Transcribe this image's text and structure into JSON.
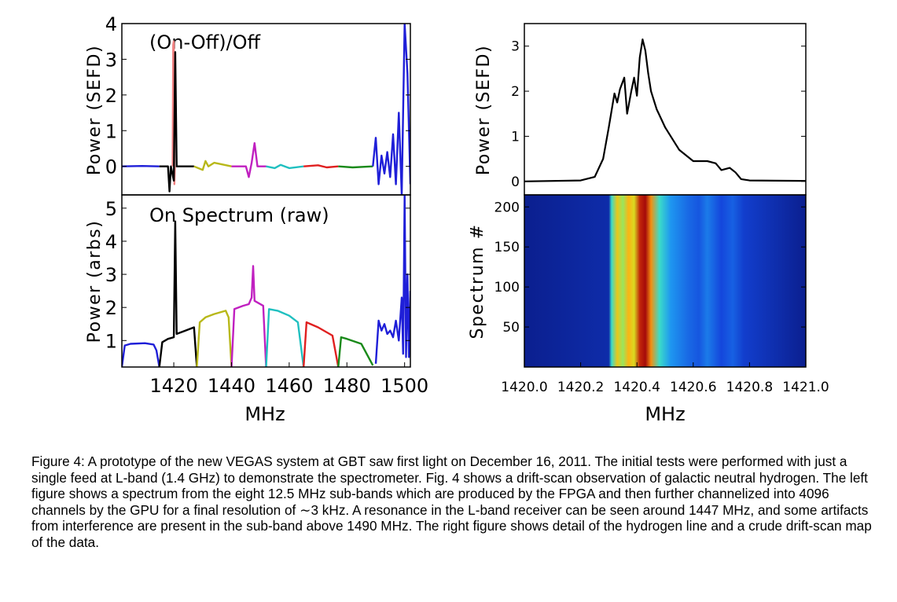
{
  "chart_data": [
    {
      "panel": "left-top",
      "type": "line",
      "title": "(On-Off)/Off",
      "xlabel": "",
      "ylabel": "Power (SEFD)",
      "xlim": [
        1402,
        1502
      ],
      "ylim": [
        -0.8,
        4
      ],
      "yticks": [
        "0",
        "1",
        "2",
        "3",
        "4"
      ],
      "series": [
        {
          "name": "sub-band 1",
          "color": "#1f1fd8",
          "x": [
            1402,
            1409,
            1415
          ],
          "y": [
            0,
            0.01,
            0
          ]
        },
        {
          "name": "sub-band 2 (red spike)",
          "color": "#f08080",
          "x": [
            1419.6,
            1419.8,
            1420.0,
            1420.2,
            1420.4
          ],
          "y": [
            0,
            3.4,
            3.5,
            -0.5,
            0
          ]
        },
        {
          "name": "sub-band 2",
          "color": "#000000",
          "x": [
            1415,
            1418,
            1418.5,
            1419,
            1420,
            1420.5,
            1421,
            1427
          ],
          "y": [
            0,
            0,
            -0.7,
            0,
            -0.4,
            3.2,
            0,
            0
          ]
        },
        {
          "name": "sub-band 3",
          "color": "#b8b81a",
          "x": [
            1427,
            1430,
            1431,
            1432,
            1434,
            1440
          ],
          "y": [
            0,
            -0.1,
            0.15,
            0,
            0.1,
            0
          ]
        },
        {
          "name": "sub-band 4",
          "color": "#c020c0",
          "x": [
            1440,
            1445,
            1446,
            1447,
            1448,
            1449,
            1452
          ],
          "y": [
            0,
            0,
            -0.3,
            0.1,
            0.65,
            0,
            0
          ]
        },
        {
          "name": "sub-band 5",
          "color": "#20c0c0",
          "x": [
            1452,
            1455,
            1457,
            1460,
            1465
          ],
          "y": [
            0,
            -0.05,
            0.04,
            -0.05,
            0
          ]
        },
        {
          "name": "sub-band 6",
          "color": "#e02020",
          "x": [
            1465,
            1470,
            1473,
            1477
          ],
          "y": [
            0,
            0.03,
            -0.03,
            0
          ]
        },
        {
          "name": "sub-band 7",
          "color": "#1a8a1a",
          "x": [
            1477,
            1482,
            1489
          ],
          "y": [
            0,
            -0.03,
            0
          ]
        },
        {
          "name": "sub-band 8",
          "color": "#1f1fd8",
          "x": [
            1489,
            1490,
            1491,
            1492,
            1493,
            1494,
            1495,
            1496,
            1497,
            1498,
            1499,
            1500,
            1501,
            1502
          ],
          "y": [
            0,
            0.8,
            -0.5,
            0.3,
            -0.2,
            0.4,
            -0.3,
            0.9,
            -0.5,
            1.5,
            -0.8,
            4.0,
            2.6,
            -0.5
          ]
        }
      ]
    },
    {
      "panel": "left-bottom",
      "type": "line",
      "title": "On Spectrum (raw)",
      "xlabel": "MHz",
      "ylabel": "Power (arbs)",
      "xlim": [
        1402,
        1502
      ],
      "ylim": [
        0.2,
        5.4
      ],
      "xticks": [
        "1420",
        "1440",
        "1460",
        "1480",
        "1500"
      ],
      "yticks": [
        "1",
        "2",
        "3",
        "4",
        "5"
      ],
      "series": [
        {
          "name": "sub-band 1",
          "color": "#1f1fd8",
          "x": [
            1402,
            1403,
            1405,
            1410,
            1413,
            1414,
            1415
          ],
          "y": [
            0.2,
            0.85,
            0.9,
            0.92,
            0.88,
            0.7,
            0.2
          ]
        },
        {
          "name": "sub-band 2",
          "color": "#000000",
          "x": [
            1415,
            1416,
            1418,
            1420,
            1420.5,
            1421,
            1424,
            1427,
            1428
          ],
          "y": [
            0.2,
            0.95,
            1.05,
            1.1,
            4.6,
            1.2,
            1.3,
            1.4,
            0.2
          ]
        },
        {
          "name": "sub-band 3",
          "color": "#b8b81a",
          "x": [
            1428,
            1429,
            1431,
            1434,
            1438,
            1439,
            1440
          ],
          "y": [
            0.2,
            1.55,
            1.7,
            1.8,
            1.9,
            1.7,
            0.2
          ]
        },
        {
          "name": "sub-band 4",
          "color": "#c020c0",
          "x": [
            1440,
            1441,
            1444,
            1446,
            1447,
            1447.5,
            1448,
            1451,
            1452
          ],
          "y": [
            0.2,
            1.95,
            2.05,
            2.1,
            2.3,
            3.25,
            2.2,
            2.05,
            0.2
          ]
        },
        {
          "name": "sub-band 5",
          "color": "#20c0c0",
          "x": [
            1452,
            1453,
            1456,
            1460,
            1463,
            1465
          ],
          "y": [
            0.2,
            1.95,
            1.9,
            1.75,
            1.55,
            0.2
          ]
        },
        {
          "name": "sub-band 6",
          "color": "#e02020",
          "x": [
            1465,
            1466,
            1470,
            1475,
            1477
          ],
          "y": [
            0.2,
            1.55,
            1.4,
            1.15,
            0.2
          ]
        },
        {
          "name": "sub-band 7",
          "color": "#1a8a1a",
          "x": [
            1477,
            1478,
            1480,
            1485,
            1489
          ],
          "y": [
            0.2,
            1.1,
            1.05,
            0.9,
            0.25
          ]
        },
        {
          "name": "sub-band 8",
          "color": "#1f1fd8",
          "x": [
            1490,
            1491,
            1492,
            1493,
            1494,
            1495,
            1496,
            1497,
            1498,
            1499,
            1499.5,
            1500,
            1500.5,
            1501,
            1501.5,
            1502
          ],
          "y": [
            0.3,
            1.6,
            1.3,
            1.5,
            1.2,
            1.3,
            1.1,
            1.6,
            1.0,
            2.3,
            0.6,
            5.4,
            0.5,
            3.0,
            0.5,
            2.5
          ]
        }
      ]
    },
    {
      "panel": "right-top",
      "type": "line",
      "title": "",
      "xlabel": "",
      "ylabel": "Power (SEFD)",
      "xlim": [
        1420.0,
        1421.0
      ],
      "ylim": [
        -0.3,
        3.5
      ],
      "yticks": [
        "0",
        "1",
        "2",
        "3"
      ],
      "series": [
        {
          "name": "hydrogen line",
          "color": "#000000",
          "x": [
            1420.0,
            1420.2,
            1420.25,
            1420.28,
            1420.3,
            1420.32,
            1420.33,
            1420.34,
            1420.355,
            1420.365,
            1420.38,
            1420.39,
            1420.4,
            1420.41,
            1420.42,
            1420.43,
            1420.44,
            1420.45,
            1420.47,
            1420.5,
            1420.55,
            1420.6,
            1420.65,
            1420.68,
            1420.7,
            1420.73,
            1420.75,
            1420.77,
            1420.8,
            1421.0
          ],
          "y": [
            0,
            0.02,
            0.1,
            0.5,
            1.2,
            1.95,
            1.75,
            2.05,
            2.3,
            1.5,
            2.0,
            2.3,
            1.9,
            2.75,
            3.15,
            2.9,
            2.4,
            2.0,
            1.6,
            1.2,
            0.7,
            0.45,
            0.45,
            0.4,
            0.25,
            0.3,
            0.2,
            0.05,
            0.02,
            0.01
          ]
        }
      ]
    },
    {
      "panel": "right-bottom",
      "type": "heatmap",
      "title": "",
      "xlabel": "MHz",
      "ylabel": "Spectrum #",
      "xlim": [
        1420.0,
        1421.0
      ],
      "ylim": [
        0,
        215
      ],
      "xticks": [
        "1420.0",
        "1420.2",
        "1420.4",
        "1420.6",
        "1420.8",
        "1421.0"
      ],
      "yticks": [
        "50",
        "100",
        "150",
        "200"
      ],
      "profile_x": [
        1420.0,
        1420.3,
        1420.31,
        1420.33,
        1420.35,
        1420.37,
        1420.39,
        1420.41,
        1420.43,
        1420.45,
        1420.48,
        1420.52,
        1420.58,
        1420.62,
        1420.65,
        1420.7,
        1420.74,
        1420.78,
        1421.0
      ],
      "profile_level": [
        0.0,
        0.05,
        0.45,
        0.7,
        0.55,
        0.75,
        0.65,
        0.95,
        1.0,
        0.8,
        0.45,
        0.3,
        0.22,
        0.18,
        0.25,
        0.15,
        0.2,
        0.12,
        0.0
      ]
    }
  ],
  "caption": "Figure 4:  A prototype of the new VEGAS system at GBT saw first light on December 16, 2011. The initial tests were performed with just a single feed at L-band (1.4 GHz) to demonstrate the spectrometer.  Fig. 4 shows a drift-scan observation of galactic neutral hydrogen. The left figure shows a spectrum from the eight 12.5 MHz sub-bands which are produced by the FPGA and then further channelized into 4096 channels by the GPU for a final resolution of ∼3 kHz.  A resonance in the L-band receiver can be seen around 1447 MHz, and some artifacts from interference are present in the sub-band above 1490 MHz.  The right figure shows detail of the hydrogen line and a crude drift-scan map of the data."
}
